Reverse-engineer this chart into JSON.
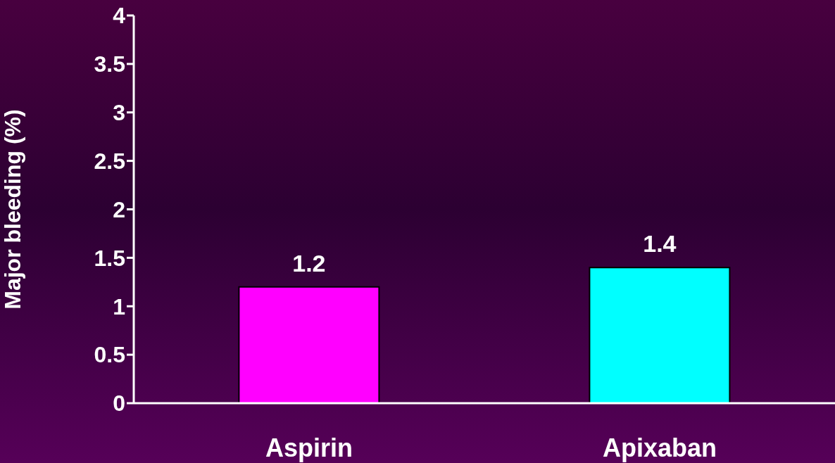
{
  "chart_data": {
    "type": "bar",
    "ylabel": "Major bleeding (%)",
    "categories": [
      "Aspirin",
      "Apixaban"
    ],
    "values": [
      1.2,
      1.4
    ],
    "colors": [
      "#ff00ff",
      "#00ffff"
    ],
    "ylim": [
      0,
      4
    ],
    "yticks": [
      0,
      0.5,
      1,
      1.5,
      2,
      2.5,
      3,
      3.5,
      4
    ],
    "data_labels": true,
    "grid": false,
    "legend": false
  }
}
